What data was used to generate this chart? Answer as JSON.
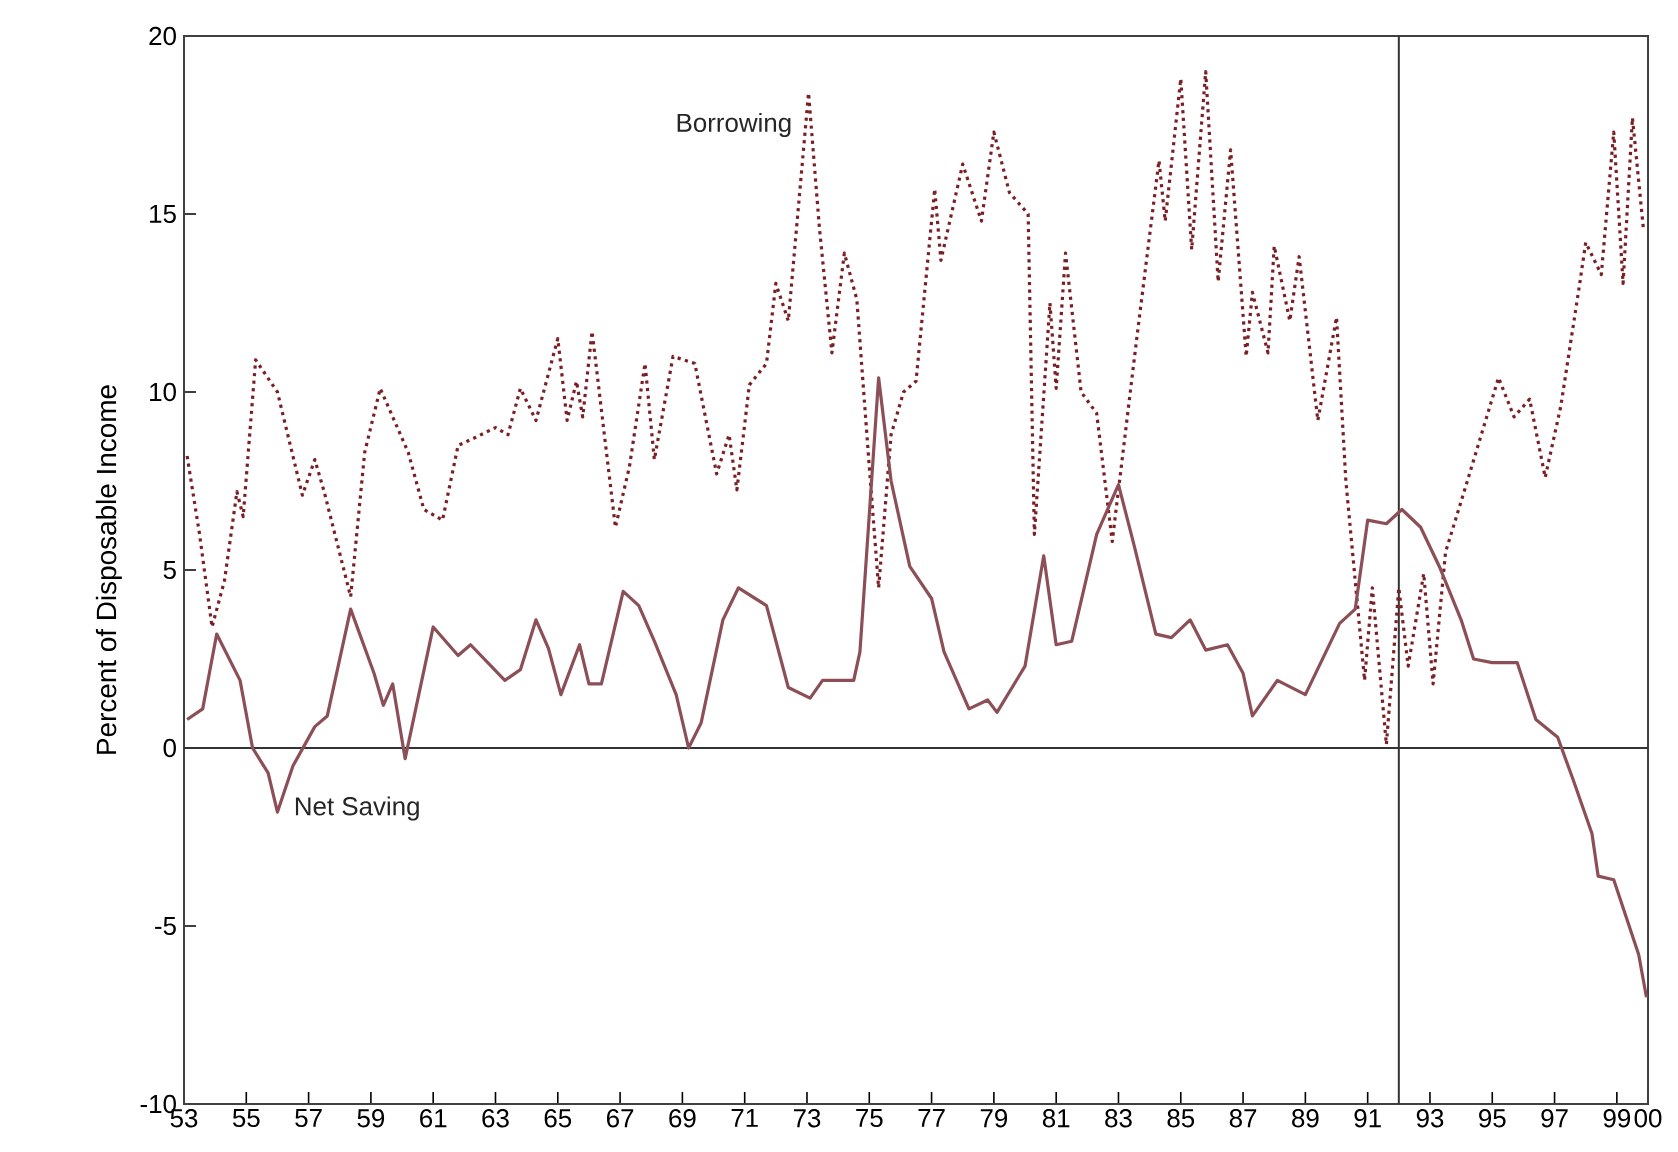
{
  "chart_data": {
    "type": "line",
    "ylabel": "Percent of Disposable Income",
    "xlim": [
      1953,
      2000
    ],
    "ylim": [
      -10,
      20
    ],
    "yticks": [
      -10,
      -5,
      0,
      5,
      10,
      15,
      20
    ],
    "xticks": [
      {
        "value": 1953,
        "label": "53"
      },
      {
        "value": 1955,
        "label": "55"
      },
      {
        "value": 1957,
        "label": "57"
      },
      {
        "value": 1959,
        "label": "59"
      },
      {
        "value": 1961,
        "label": "61"
      },
      {
        "value": 1963,
        "label": "63"
      },
      {
        "value": 1965,
        "label": "65"
      },
      {
        "value": 1967,
        "label": "67"
      },
      {
        "value": 1969,
        "label": "69"
      },
      {
        "value": 1971,
        "label": "71"
      },
      {
        "value": 1973,
        "label": "73"
      },
      {
        "value": 1975,
        "label": "75"
      },
      {
        "value": 1977,
        "label": "77"
      },
      {
        "value": 1979,
        "label": "79"
      },
      {
        "value": 1981,
        "label": "81"
      },
      {
        "value": 1983,
        "label": "83"
      },
      {
        "value": 1985,
        "label": "85"
      },
      {
        "value": 1987,
        "label": "87"
      },
      {
        "value": 1989,
        "label": "89"
      },
      {
        "value": 1991,
        "label": "91"
      },
      {
        "value": 1993,
        "label": "93"
      },
      {
        "value": 1995,
        "label": "95"
      },
      {
        "value": 1997,
        "label": "97"
      },
      {
        "value": 1999,
        "label": "99"
      },
      {
        "value": 2000,
        "label": "00"
      }
    ],
    "grid": false,
    "legend": false,
    "marker": "none",
    "ref_lines": [
      {
        "axis": "y",
        "value": 0,
        "color": "#333333"
      },
      {
        "axis": "x",
        "value": 1992,
        "color": "#333333"
      }
    ],
    "series": [
      {
        "name": "Borrowing",
        "color": "#7a1f24",
        "line_style": "dotted",
        "x": [
          1953.1,
          1953.5,
          1953.9,
          1954.3,
          1954.7,
          1954.9,
          1955.3,
          1956.0,
          1956.8,
          1957.2,
          1957.5,
          1958.35,
          1958.8,
          1959.3,
          1960.2,
          1960.7,
          1961.3,
          1961.8,
          1962.3,
          1963.0,
          1963.4,
          1963.8,
          1964.3,
          1965.0,
          1965.3,
          1965.6,
          1965.8,
          1966.1,
          1966.85,
          1967.3,
          1967.8,
          1968.1,
          1968.7,
          1969.4,
          1970.1,
          1970.5,
          1970.75,
          1971.15,
          1971.7,
          1972.0,
          1972.4,
          1973.05,
          1973.4,
          1973.8,
          1974.2,
          1974.6,
          1975.0,
          1975.3,
          1975.7,
          1976.1,
          1976.5,
          1977.1,
          1977.3,
          1978.0,
          1978.6,
          1979.0,
          1979.5,
          1980.1,
          1980.3,
          1980.8,
          1981.0,
          1981.3,
          1981.8,
          1982.3,
          1982.8,
          1983.6,
          1984.3,
          1984.5,
          1985.0,
          1985.35,
          1985.8,
          1986.2,
          1986.6,
          1987.1,
          1987.3,
          1987.8,
          1988.0,
          1988.5,
          1988.8,
          1989.4,
          1990.0,
          1990.3,
          1990.9,
          1991.15,
          1991.6,
          1992.0,
          1992.3,
          1992.8,
          1993.1,
          1993.5,
          1994.2,
          1995.2,
          1995.7,
          1996.2,
          1996.7,
          1997.2,
          1997.8,
          1998.0,
          1998.5,
          1998.9,
          1999.2,
          1999.5,
          1999.85
        ],
        "values": [
          8.2,
          6.0,
          3.4,
          4.7,
          7.2,
          6.5,
          10.9,
          10.0,
          7.1,
          8.1,
          7.2,
          4.25,
          8.3,
          10.1,
          8.3,
          6.7,
          6.4,
          8.5,
          8.7,
          9.0,
          8.8,
          10.1,
          9.2,
          11.5,
          9.2,
          10.3,
          9.3,
          11.7,
          6.2,
          7.9,
          10.8,
          8.1,
          11.0,
          10.8,
          7.7,
          8.8,
          7.25,
          10.2,
          10.8,
          13.05,
          12.0,
          18.4,
          14.6,
          11.1,
          13.9,
          12.6,
          7.9,
          4.5,
          8.8,
          10.0,
          10.3,
          15.7,
          13.7,
          16.4,
          14.8,
          17.3,
          15.6,
          15.0,
          6.0,
          12.5,
          10.1,
          13.9,
          10.0,
          9.4,
          5.8,
          11.6,
          16.5,
          14.8,
          18.8,
          14.0,
          19.0,
          13.1,
          16.8,
          11.0,
          12.8,
          11.1,
          14.1,
          12.0,
          13.8,
          9.2,
          12.1,
          7.5,
          1.9,
          4.5,
          0.1,
          4.5,
          2.3,
          4.9,
          1.8,
          5.5,
          7.5,
          10.4,
          9.3,
          9.8,
          7.6,
          9.6,
          13.0,
          14.2,
          13.3,
          17.3,
          13.05,
          17.7,
          14.6
        ]
      },
      {
        "name": "Net Saving",
        "color": "#8c4f57",
        "line_style": "solid",
        "x": [
          1953.1,
          1953.6,
          1954.05,
          1954.8,
          1955.2,
          1955.7,
          1956.0,
          1956.5,
          1957.2,
          1957.6,
          1958.35,
          1959.1,
          1959.4,
          1959.7,
          1960.1,
          1961.0,
          1961.8,
          1962.2,
          1963.3,
          1963.8,
          1964.3,
          1964.7,
          1965.1,
          1965.7,
          1966.0,
          1966.4,
          1967.1,
          1967.6,
          1968.1,
          1968.8,
          1969.2,
          1969.6,
          1970.3,
          1970.8,
          1971.7,
          1972.4,
          1973.1,
          1973.5,
          1974.5,
          1974.7,
          1975.3,
          1975.7,
          1976.3,
          1977.0,
          1977.4,
          1978.2,
          1978.8,
          1979.1,
          1980.0,
          1980.6,
          1981.0,
          1981.5,
          1982.3,
          1983.0,
          1983.5,
          1984.2,
          1984.7,
          1985.3,
          1985.8,
          1986.5,
          1987.0,
          1987.3,
          1988.1,
          1989.0,
          1990.1,
          1990.6,
          1991.0,
          1991.6,
          1992.1,
          1992.7,
          1993.3,
          1994.0,
          1994.4,
          1995.0,
          1995.8,
          1996.4,
          1997.1,
          1997.6,
          1998.2,
          1998.4,
          1998.9,
          1999.7,
          1999.95
        ],
        "values": [
          0.8,
          1.1,
          3.2,
          1.9,
          0.0,
          -0.7,
          -1.8,
          -0.5,
          0.6,
          0.9,
          3.9,
          2.1,
          1.2,
          1.8,
          -0.3,
          3.4,
          2.6,
          2.9,
          1.9,
          2.2,
          3.6,
          2.8,
          1.5,
          2.9,
          1.8,
          1.8,
          4.4,
          4.0,
          3.0,
          1.5,
          0.0,
          0.7,
          3.6,
          4.5,
          4.0,
          1.7,
          1.4,
          1.9,
          1.9,
          2.7,
          10.4,
          7.5,
          5.1,
          4.2,
          2.7,
          1.1,
          1.35,
          1.0,
          2.3,
          5.4,
          2.9,
          3.0,
          6.0,
          7.4,
          5.7,
          3.2,
          3.1,
          3.6,
          2.75,
          2.9,
          2.1,
          0.9,
          1.9,
          1.5,
          3.5,
          3.9,
          6.4,
          6.3,
          6.7,
          6.2,
          5.1,
          3.6,
          2.5,
          2.4,
          2.4,
          0.8,
          0.3,
          -0.9,
          -2.4,
          -3.6,
          -3.7,
          -5.8,
          -7.0
        ]
      }
    ]
  }
}
